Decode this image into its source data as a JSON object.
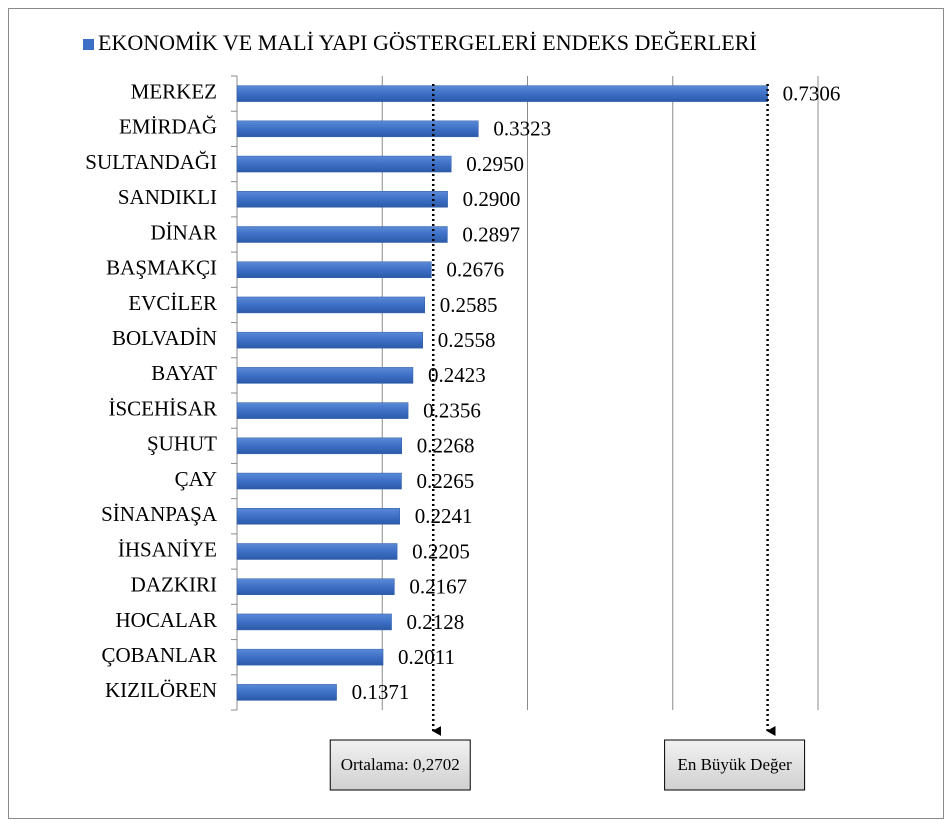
{
  "chart_data": {
    "type": "barh",
    "legend": "EKONOMİK VE MALİ YAPI GÖSTERGELERİ ENDEKS DEĞERLERİ",
    "color": "#3d6fc6",
    "categories": [
      "MERKEZ",
      "EMİRDAĞ",
      "SULTANDAĞI",
      "SANDIKLI",
      "DİNAR",
      "BAŞMAKÇI",
      "EVCİLER",
      "BOLVADİN",
      "BAYAT",
      "İSCEHİSAR",
      "ŞUHUT",
      "ÇAY",
      "SİNANPAŞA",
      "İHSANİYE",
      "DAZKIRI",
      "HOCALAR",
      "ÇOBANLAR",
      "KIZILÖREN"
    ],
    "values": [
      0.7306,
      0.3323,
      0.295,
      0.29,
      0.2897,
      0.2676,
      0.2585,
      0.2558,
      0.2423,
      0.2356,
      0.2268,
      0.2265,
      0.2241,
      0.2205,
      0.2167,
      0.2128,
      0.2011,
      0.1371
    ],
    "value_labels": [
      "0.7306",
      "0.3323",
      "0.2950",
      "0.2900",
      "0.2897",
      "0.2676",
      "0.2585",
      "0.2558",
      "0.2423",
      "0.2356",
      "0.2268",
      "0.2265",
      "0.2241",
      "0.2205",
      "0.2167",
      "0.2128",
      "0.2011",
      "0.1371"
    ],
    "xlim": [
      0,
      0.8
    ],
    "xticks": [
      0,
      0.2,
      0.4,
      0.6,
      0.8
    ],
    "grid": true,
    "annotations": [
      {
        "text": "Ortalama: 0,2702",
        "value": 0.2702
      },
      {
        "text": "En Büyük Değer",
        "value": 0.7306
      }
    ]
  }
}
